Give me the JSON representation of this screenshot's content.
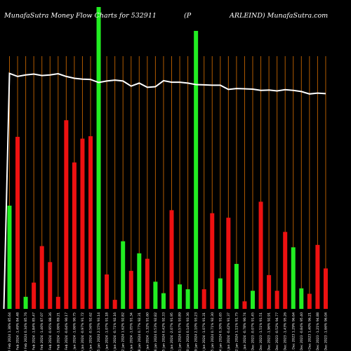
{
  "title": {
    "left": "MunafaSutra  Money Flow  Charts for 532911",
    "mid": "(P",
    "right": "ARLEIND) MunafaSutra.com"
  },
  "colors": {
    "background": "#000000",
    "up": "#22ee22",
    "down": "#ee1111",
    "grid": "#b05a00",
    "line": "#ffffff",
    "text": "#ffffff"
  },
  "chart_data": {
    "type": "bar",
    "grid": true,
    "bars": [
      {
        "label": "12 Feb 2024 1.38% 85.64",
        "dir": "up",
        "value": 0.342
      },
      {
        "label": "09 Feb 2024 -1.49% 84.48",
        "dir": "down",
        "value": 0.57
      },
      {
        "label": "08 Feb 2024 0.34% 85.76",
        "dir": "up",
        "value": 0.04
      },
      {
        "label": "07 Feb 2024 -1.84% 85.47",
        "dir": "down",
        "value": 0.087
      },
      {
        "label": "06 Feb 2024 -1.46% 87.07",
        "dir": "down",
        "value": 0.208
      },
      {
        "label": "05 Feb 2024 -0.95% 88.36",
        "dir": "down",
        "value": 0.155
      },
      {
        "label": "02 Feb 2024 -1.06% 89.21",
        "dir": "down",
        "value": 0.04
      },
      {
        "label": "01 Feb 2024 -0.64% 90.17",
        "dir": "down",
        "value": 0.625
      },
      {
        "label": "31 Jan 2024 -1.06% 90.75",
        "dir": "down",
        "value": 0.485
      },
      {
        "label": "30 Jan 2024 -0.97% 91.72",
        "dir": "down",
        "value": 0.564
      },
      {
        "label": "29 Jan 2024 -0.56% 92.62",
        "dir": "down",
        "value": 0.572
      },
      {
        "label": "25 Jan 2024 2.15% 93.14",
        "dir": "up",
        "value": 1.0
      },
      {
        "label": "24 Jan 2024 -1.07% 91.18",
        "dir": "down",
        "value": 0.114
      },
      {
        "label": "23 Jan 2024 -0.71% 92.16",
        "dir": "down",
        "value": 0.03
      },
      {
        "label": "22 Jan 2024 1.62% 92.82",
        "dir": "up",
        "value": 0.224
      },
      {
        "label": "19 Jan 2024 -1.05% 91.34",
        "dir": "down",
        "value": 0.126
      },
      {
        "label": "18 Jan 2024 0.77% 92.31",
        "dir": "up",
        "value": 0.184
      },
      {
        "label": "17 Jan 2024 -1.32% 91.60",
        "dir": "down",
        "value": 0.166
      },
      {
        "label": "16 Jan 2024 0.53% 92.82",
        "dir": "up",
        "value": 0.09
      },
      {
        "label": "15 Jan 2024 0.42% 92.33",
        "dir": "up",
        "value": 0.052
      },
      {
        "label": "12 Jan 2024 -2.07% 91.95",
        "dir": "down",
        "value": 0.327
      },
      {
        "label": "11 Jan 2024 0.57% 93.89",
        "dir": "up",
        "value": 0.081
      },
      {
        "label": "10 Jan 2024 0.14% 93.36",
        "dir": "up",
        "value": 0.065
      },
      {
        "label": "09 Jan 2024 2.10% 93.23",
        "dir": "up",
        "value": 0.921
      },
      {
        "label": "08 Jan 2024 -1.07% 91.31",
        "dir": "down",
        "value": 0.065
      },
      {
        "label": "05 Jan 2024 0.71% 92.30",
        "dir": "down",
        "value": 0.317
      },
      {
        "label": "04 Jan 2024 0.30% 91.65",
        "dir": "up",
        "value": 0.101
      },
      {
        "label": "03 Jan 2024 -0.42% 91.37",
        "dir": "down",
        "value": 0.302
      },
      {
        "label": "02 Jan 2024 1.11% 91.75",
        "dir": "up",
        "value": 0.149
      },
      {
        "label": "01 Jan 2024 -0.78% 90.74",
        "dir": "down",
        "value": 0.025
      },
      {
        "label": "29 Dec 2023 -0.07% 91.45",
        "dir": "up",
        "value": 0.06
      },
      {
        "label": "28 Dec 2023 -1.51% 91.51",
        "dir": "down",
        "value": 0.355
      },
      {
        "label": "27 Dec 2023 -1.96% 92.91",
        "dir": "down",
        "value": 0.112
      },
      {
        "label": "26 Dec 2023 -0.52% 94.77",
        "dir": "down",
        "value": 0.06
      },
      {
        "label": "22 Dec 2023 -1.43% 95.26",
        "dir": "down",
        "value": 0.255
      },
      {
        "label": "21 Dec 2023 1.29% 96.64",
        "dir": "up",
        "value": 0.204
      },
      {
        "label": "20 Dec 2023 -0.84% 95.40",
        "dir": "up",
        "value": 0.068
      },
      {
        "label": "19 Dec 2023 1.40% 96.21",
        "dir": "down",
        "value": 0.05
      },
      {
        "label": "18 Dec 2023 -1.21% 94.88",
        "dir": "down",
        "value": 0.212
      },
      {
        "label": "15 Dec 2023 -1.66% 96.04",
        "dir": "down",
        "value": 0.134
      }
    ],
    "line": [
      0.78,
      0.77,
      0.775,
      0.778,
      0.773,
      0.775,
      0.779,
      0.77,
      0.764,
      0.761,
      0.76,
      0.75,
      0.755,
      0.758,
      0.755,
      0.738,
      0.748,
      0.734,
      0.736,
      0.756,
      0.751,
      0.751,
      0.748,
      0.743,
      0.742,
      0.741,
      0.741,
      0.727,
      0.73,
      0.729,
      0.728,
      0.724,
      0.725,
      0.722,
      0.726,
      0.724,
      0.72,
      0.712,
      0.715,
      0.713
    ]
  }
}
